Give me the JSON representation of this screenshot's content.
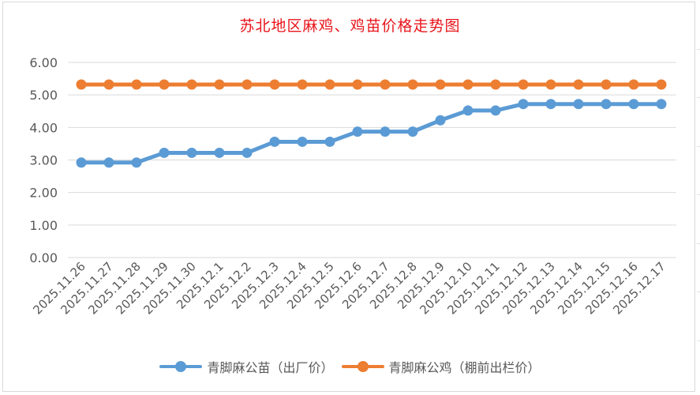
{
  "chart_data": {
    "type": "line",
    "title": "苏北地区麻鸡、鸡苗价格走势图",
    "xlabel": "",
    "ylabel": "",
    "ylim": [
      0,
      6
    ],
    "yticks": [
      "0.00",
      "1.00",
      "2.00",
      "3.00",
      "4.00",
      "5.00",
      "6.00"
    ],
    "grid": true,
    "legend_position": "bottom",
    "categories": [
      "2025.11.26",
      "2025.11.27",
      "2025.11.28",
      "2025.11.29",
      "2025.11.30",
      "2025.12.1",
      "2025.12.2",
      "2025.12.3",
      "2025.12.4",
      "2025.12.5",
      "2025.12.6",
      "2025.12.7",
      "2025.12.8",
      "2025.12.9",
      "2025.12.10",
      "2025.12.11",
      "2025.12.12",
      "2025.12.13",
      "2025.12.14",
      "2025.12.15",
      "2025.12.16",
      "2025.12.17"
    ],
    "series": [
      {
        "name": "青脚麻公苗（出厂价）",
        "color": "#5b9bd5",
        "values": [
          2.92,
          2.92,
          2.92,
          3.22,
          3.22,
          3.22,
          3.22,
          3.56,
          3.56,
          3.56,
          3.87,
          3.87,
          3.87,
          4.22,
          4.52,
          4.52,
          4.72,
          4.72,
          4.72,
          4.72,
          4.72,
          4.72
        ]
      },
      {
        "name": "青脚麻公鸡（棚前出栏价）",
        "color": "#ed7d31",
        "values": [
          5.32,
          5.32,
          5.32,
          5.32,
          5.32,
          5.32,
          5.32,
          5.32,
          5.32,
          5.32,
          5.32,
          5.32,
          5.32,
          5.32,
          5.32,
          5.32,
          5.32,
          5.32,
          5.32,
          5.32,
          5.32,
          5.32
        ]
      }
    ]
  },
  "colors": {
    "title": "#e8141b",
    "gridline": "#d9d9d9",
    "axis_text": "#595959"
  }
}
